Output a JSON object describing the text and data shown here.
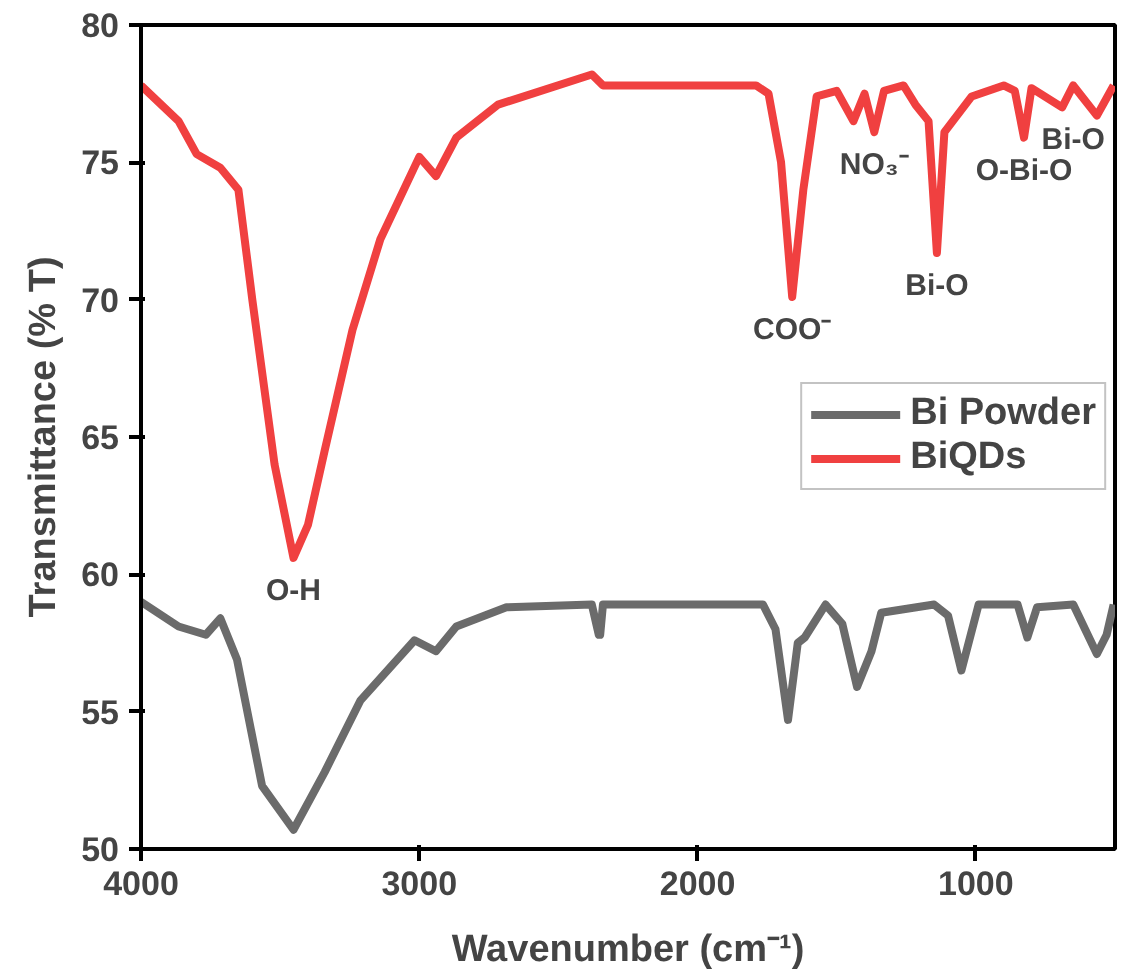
{
  "chart_data": {
    "type": "line",
    "xlabel": "Wavenumber (cm⁻¹)",
    "ylabel": "Transmittance (% T)",
    "xlim": [
      4000,
      500
    ],
    "xticks": [
      4000,
      3000,
      2000,
      1000
    ],
    "ylim": [
      50,
      80
    ],
    "yticks": [
      50,
      55,
      60,
      65,
      70,
      75,
      80
    ],
    "grid": false,
    "legend": "right",
    "marker": "none",
    "line_style": "solid",
    "series": [
      {
        "name": "Bi Powder",
        "color": "#6b6b6b",
        "x": [
          4000,
          3865,
          3767,
          3715,
          3655,
          3565,
          3452,
          3340,
          3212,
          3017,
          2940,
          2867,
          2687,
          2380,
          2355,
          2350,
          2340,
          1765,
          1720,
          1675,
          1640,
          1615,
          1540,
          1480,
          1427,
          1375,
          1340,
          1150,
          1100,
          1052,
          990,
          850,
          815,
          780,
          650,
          565,
          530,
          505
        ],
        "values": [
          59.0,
          58.1,
          57.8,
          58.4,
          56.9,
          52.3,
          50.7,
          52.8,
          55.4,
          57.6,
          57.2,
          58.1,
          58.8,
          58.9,
          57.8,
          57.8,
          58.9,
          58.9,
          58.0,
          54.7,
          57.5,
          57.7,
          58.9,
          58.2,
          55.9,
          57.2,
          58.6,
          58.9,
          58.5,
          56.5,
          58.9,
          58.9,
          57.7,
          58.8,
          58.9,
          57.1,
          57.8,
          58.9
        ]
      },
      {
        "name": "BiQDs",
        "color": "#f04040",
        "x": [
          4000,
          3865,
          3800,
          3715,
          3650,
          3600,
          3520,
          3452,
          3400,
          3340,
          3240,
          3140,
          3000,
          2940,
          2867,
          2717,
          2380,
          2340,
          1790,
          1745,
          1700,
          1660,
          1620,
          1572,
          1500,
          1440,
          1400,
          1365,
          1330,
          1260,
          1217,
          1170,
          1140,
          1113,
          1015,
          900,
          860,
          827,
          800,
          690,
          650,
          565,
          505
        ],
        "values": [
          77.8,
          76.5,
          75.3,
          74.8,
          74.0,
          70.0,
          64.0,
          60.6,
          61.8,
          64.5,
          68.9,
          72.2,
          75.2,
          74.5,
          75.9,
          77.1,
          78.2,
          77.8,
          77.8,
          77.5,
          75.0,
          70.1,
          74.0,
          77.4,
          77.6,
          76.5,
          77.5,
          76.1,
          77.6,
          77.8,
          77.1,
          76.5,
          71.7,
          76.1,
          77.4,
          77.8,
          77.6,
          75.9,
          77.7,
          77.0,
          77.8,
          76.7,
          77.8
        ]
      }
    ],
    "annotations": [
      {
        "text": "O-H",
        "x": 3452,
        "y": 60.6
      },
      {
        "text": "COO⁻",
        "x": 1660,
        "y": 70.1
      },
      {
        "text": "NO₃⁻",
        "x": 1365,
        "y": 76.1
      },
      {
        "text": "Bi-O",
        "x": 1140,
        "y": 71.7
      },
      {
        "text": "O-Bi-O",
        "x": 827,
        "y": 75.9
      },
      {
        "text": "Bi-O",
        "x": 650,
        "y": 77.0
      }
    ]
  }
}
